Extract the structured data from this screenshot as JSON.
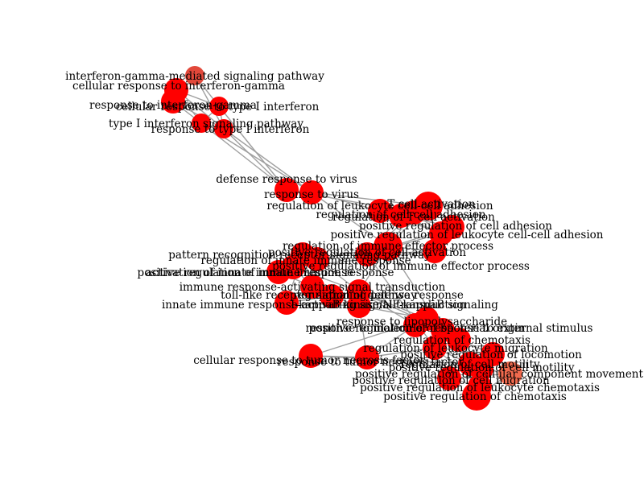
{
  "network": {
    "edge_color": "#a0a0a0",
    "node_colors": {
      "red": "#ff0000",
      "light": "#e2483a",
      "salmon": "#f06a4e"
    },
    "nodes": [
      {
        "id": "n1",
        "label": "interferon-gamma-mediated signaling pathway",
        "color": "light",
        "size": "s"
      },
      {
        "id": "n2",
        "label": "cellular response to interferon-gamma",
        "color": "red",
        "size": "m"
      },
      {
        "id": "n3",
        "label": "response to interferon-gamma",
        "color": "red",
        "size": "m"
      },
      {
        "id": "n4",
        "label": "cellular response to type I interferon",
        "color": "red",
        "size": "s"
      },
      {
        "id": "n5",
        "label": "type I interferon signaling pathway",
        "color": "red",
        "size": "s"
      },
      {
        "id": "n6",
        "label": "response to type I interferon",
        "color": "red",
        "size": "s"
      },
      {
        "id": "n7",
        "label": "defense response to virus",
        "color": "red",
        "size": "m"
      },
      {
        "id": "n8",
        "label": "response to virus",
        "color": "red",
        "size": "m"
      },
      {
        "id": "n9",
        "label": "T cell activation",
        "color": "red",
        "size": "l"
      },
      {
        "id": "n10",
        "label": "regulation of leukocyte cell-cell adhesion",
        "color": "red",
        "size": "m"
      },
      {
        "id": "n11",
        "label": "regulation of cell-cell adhesion",
        "color": "red",
        "size": "m"
      },
      {
        "id": "n12",
        "label": "regulation of T cell activation",
        "color": "red",
        "size": "m"
      },
      {
        "id": "n13",
        "label": "positive regulation of cell adhesion",
        "color": "red",
        "size": "m"
      },
      {
        "id": "n14",
        "label": "positive regulation of leukocyte cell-cell adhesion",
        "color": "red",
        "size": "m"
      },
      {
        "id": "n15",
        "label": "regulation of immune effector process",
        "color": "red",
        "size": "l"
      },
      {
        "id": "n16",
        "label": "positive regulation of cell activation",
        "color": "red",
        "size": "m"
      },
      {
        "id": "n17",
        "label": "positive regulation of immune effector process",
        "color": "red",
        "size": "m"
      },
      {
        "id": "n18",
        "label": "pattern recognition receptor signaling pathway",
        "color": "red",
        "size": "m"
      },
      {
        "id": "n19",
        "label": "regulation of innate immune response",
        "color": "red",
        "size": "m"
      },
      {
        "id": "n20",
        "label": "activation of innate immune response",
        "color": "red",
        "size": "m"
      },
      {
        "id": "n21",
        "label": "positive regulation of innate immune response",
        "color": "red",
        "size": "m"
      },
      {
        "id": "n22",
        "label": "immune response-activating signal transduction",
        "color": "red",
        "size": "m"
      },
      {
        "id": "n23",
        "label": "toll-like receptor signaling pathway",
        "color": "red",
        "size": "m"
      },
      {
        "id": "n24",
        "label": "regulation of defense response",
        "color": "red",
        "size": "m"
      },
      {
        "id": "n25",
        "label": "innate immune response-activating signal transduction",
        "color": "red",
        "size": "m"
      },
      {
        "id": "n26",
        "label": "I-kappaB kinase/NF-kappaB signaling",
        "color": "red",
        "size": "m"
      },
      {
        "id": "n27",
        "label": "response to lipopolysaccharide",
        "color": "red",
        "size": "m"
      },
      {
        "id": "n28",
        "label": "response to molecule of bacterial origin",
        "color": "red",
        "size": "m"
      },
      {
        "id": "n29",
        "label": "positive regulation of response to external stimulus",
        "color": "red",
        "size": "m"
      },
      {
        "id": "n30",
        "label": "regulation of chemotaxis",
        "color": "red",
        "size": "m"
      },
      {
        "id": "n31",
        "label": "regulation of leukocyte migration",
        "color": "red",
        "size": "m"
      },
      {
        "id": "n32",
        "label": "positive regulation of locomotion",
        "color": "red",
        "size": "m"
      },
      {
        "id": "n33",
        "label": "cellular response to tumor necrosis factor",
        "color": "red",
        "size": "m"
      },
      {
        "id": "n34",
        "label": "response to tumor necrosis factor",
        "color": "red",
        "size": "m"
      },
      {
        "id": "n35",
        "label": "regulation of cell motility",
        "color": "red",
        "size": "m"
      },
      {
        "id": "n36",
        "label": "positive regulation of cell motility",
        "color": "red",
        "size": "m"
      },
      {
        "id": "n37",
        "label": "positive regulation of cell migration",
        "color": "red",
        "size": "m"
      },
      {
        "id": "n38",
        "label": "positive regulation of cellular component movement",
        "color": "salmon",
        "size": "m"
      },
      {
        "id": "n39",
        "label": "positive regulation of leukocyte chemotaxis",
        "color": "red",
        "size": "m"
      },
      {
        "id": "n40",
        "label": "positive regulation of chemotaxis",
        "color": "red",
        "size": "l"
      }
    ],
    "edges": [
      [
        "n1",
        "n2"
      ],
      [
        "n1",
        "n3"
      ],
      [
        "n2",
        "n3"
      ],
      [
        "n1",
        "n4"
      ],
      [
        "n2",
        "n4"
      ],
      [
        "n3",
        "n4"
      ],
      [
        "n4",
        "n5"
      ],
      [
        "n4",
        "n6"
      ],
      [
        "n5",
        "n6"
      ],
      [
        "n3",
        "n6"
      ],
      [
        "n2",
        "n5"
      ],
      [
        "n1",
        "n6"
      ],
      [
        "n3",
        "n5"
      ],
      [
        "n2",
        "n6"
      ],
      [
        "n5",
        "n7"
      ],
      [
        "n6",
        "n7"
      ],
      [
        "n4",
        "n7"
      ],
      [
        "n6",
        "n8"
      ],
      [
        "n5",
        "n8"
      ],
      [
        "n7",
        "n8"
      ],
      [
        "n8",
        "n9"
      ],
      [
        "n8",
        "n10"
      ],
      [
        "n8",
        "n15"
      ],
      [
        "n7",
        "n12"
      ],
      [
        "n9",
        "n10"
      ],
      [
        "n9",
        "n11"
      ],
      [
        "n9",
        "n12"
      ],
      [
        "n10",
        "n11"
      ],
      [
        "n10",
        "n13"
      ],
      [
        "n10",
        "n14"
      ],
      [
        "n11",
        "n13"
      ],
      [
        "n11",
        "n14"
      ],
      [
        "n12",
        "n14"
      ],
      [
        "n13",
        "n14"
      ],
      [
        "n12",
        "n16"
      ],
      [
        "n13",
        "n16"
      ],
      [
        "n14",
        "n16"
      ],
      [
        "n16",
        "n15"
      ],
      [
        "n15",
        "n17"
      ],
      [
        "n16",
        "n17"
      ],
      [
        "n15",
        "n19"
      ],
      [
        "n15",
        "n24"
      ],
      [
        "n17",
        "n21"
      ],
      [
        "n18",
        "n19"
      ],
      [
        "n18",
        "n22"
      ],
      [
        "n18",
        "n23"
      ],
      [
        "n19",
        "n20"
      ],
      [
        "n19",
        "n21"
      ],
      [
        "n20",
        "n21"
      ],
      [
        "n20",
        "n22"
      ],
      [
        "n21",
        "n22"
      ],
      [
        "n22",
        "n23"
      ],
      [
        "n22",
        "n25"
      ],
      [
        "n23",
        "n25"
      ],
      [
        "n23",
        "n26"
      ],
      [
        "n25",
        "n26"
      ],
      [
        "n19",
        "n24"
      ],
      [
        "n21",
        "n24"
      ],
      [
        "n24",
        "n25"
      ],
      [
        "n24",
        "n26"
      ],
      [
        "n18",
        "n25"
      ],
      [
        "n26",
        "n27"
      ],
      [
        "n27",
        "n28"
      ],
      [
        "n24",
        "n27"
      ],
      [
        "n24",
        "n28"
      ],
      [
        "n28",
        "n29"
      ],
      [
        "n24",
        "n29"
      ],
      [
        "n27",
        "n33"
      ],
      [
        "n28",
        "n34"
      ],
      [
        "n33",
        "n34"
      ],
      [
        "n34",
        "n26"
      ],
      [
        "n29",
        "n30"
      ],
      [
        "n29",
        "n31"
      ],
      [
        "n30",
        "n31"
      ],
      [
        "n30",
        "n32"
      ],
      [
        "n31",
        "n32"
      ],
      [
        "n31",
        "n35"
      ],
      [
        "n32",
        "n35"
      ],
      [
        "n32",
        "n36"
      ],
      [
        "n35",
        "n36"
      ],
      [
        "n36",
        "n37"
      ],
      [
        "n35",
        "n37"
      ],
      [
        "n37",
        "n38"
      ],
      [
        "n36",
        "n38"
      ],
      [
        "n32",
        "n38"
      ],
      [
        "n30",
        "n39"
      ],
      [
        "n31",
        "n39"
      ],
      [
        "n39",
        "n40"
      ],
      [
        "n30",
        "n40"
      ],
      [
        "n38",
        "n40"
      ],
      [
        "n37",
        "n39"
      ],
      [
        "n29",
        "n39"
      ],
      [
        "n34",
        "n31"
      ],
      [
        "n33",
        "n35"
      ],
      [
        "n16",
        "n31"
      ],
      [
        "n15",
        "n29"
      ],
      [
        "n9",
        "n15"
      ],
      [
        "n12",
        "n15"
      ],
      [
        "n11",
        "n16"
      ]
    ]
  }
}
